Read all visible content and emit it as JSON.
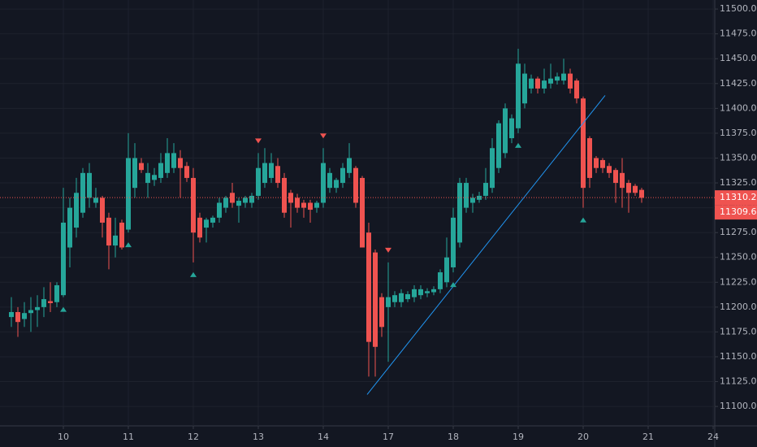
{
  "chart_data": {
    "type": "candlestick",
    "colors": {
      "up": "#26a69a",
      "down": "#ef5350",
      "trendline": "#2196f3"
    },
    "open": [
      11190,
      11195,
      11188,
      11194,
      11197,
      11200,
      11206,
      11205,
      11212,
      11260,
      11280,
      11295,
      11310,
      11305,
      11310,
      11290,
      11262,
      11285,
      11278,
      11320,
      11345,
      11325,
      11328,
      11330,
      11335,
      11340,
      11350,
      11342,
      11330,
      11290,
      11280,
      11285,
      11290,
      11300,
      11315,
      11302,
      11305,
      11305,
      11312,
      11325,
      11330,
      11342,
      11330,
      11315,
      11310,
      11305,
      11305,
      11300,
      11305,
      11320,
      11320,
      11325,
      11335,
      11340,
      11330,
      11275,
      11255,
      11210,
      11200,
      11205,
      11205,
      11208,
      11210,
      11212,
      11214,
      11215,
      11218,
      11225,
      11240,
      11265,
      11300,
      11305,
      11308,
      11312,
      11320,
      11340,
      11355,
      11370,
      11380,
      11405,
      11420,
      11430,
      11420,
      11425,
      11428,
      11428,
      11435,
      11428,
      11410,
      11370,
      11350,
      11348,
      11342,
      11338,
      11335,
      11325,
      11322,
      11318
    ],
    "high": [
      11210,
      11200,
      11205,
      11210,
      11212,
      11220,
      11225,
      11225,
      11320,
      11310,
      11330,
      11340,
      11345,
      11320,
      11312,
      11295,
      11290,
      11288,
      11375,
      11365,
      11350,
      11345,
      11340,
      11355,
      11370,
      11365,
      11358,
      11346,
      11340,
      11295,
      11290,
      11292,
      11310,
      11312,
      11325,
      11310,
      11312,
      11315,
      11355,
      11360,
      11355,
      11350,
      11335,
      11318,
      11314,
      11308,
      11308,
      11307,
      11360,
      11340,
      11330,
      11345,
      11365,
      11342,
      11332,
      11285,
      11258,
      11214,
      11245,
      11216,
      11218,
      11216,
      11222,
      11222,
      11219,
      11221,
      11238,
      11270,
      11300,
      11330,
      11330,
      11314,
      11316,
      11340,
      11370,
      11388,
      11405,
      11394,
      11460,
      11445,
      11434,
      11432,
      11440,
      11445,
      11436,
      11450,
      11440,
      11430,
      11412,
      11372,
      11352,
      11350,
      11345,
      11340,
      11350,
      11328,
      11324,
      11320
    ],
    "low": [
      11180,
      11170,
      11180,
      11175,
      11180,
      11190,
      11195,
      11200,
      11210,
      11240,
      11270,
      11290,
      11300,
      11300,
      11270,
      11238,
      11250,
      11258,
      11275,
      11310,
      11335,
      11310,
      11322,
      11325,
      11330,
      11335,
      11310,
      11326,
      11245,
      11265,
      11265,
      11280,
      11285,
      11295,
      11300,
      11285,
      11300,
      11300,
      11308,
      11320,
      11325,
      11320,
      11290,
      11280,
      11295,
      11290,
      11285,
      11295,
      11300,
      11315,
      11315,
      11320,
      11330,
      11300,
      11260,
      11130,
      11130,
      11170,
      11145,
      11200,
      11200,
      11205,
      11205,
      11208,
      11210,
      11212,
      11214,
      11220,
      11235,
      11260,
      11295,
      11295,
      11305,
      11308,
      11315,
      11335,
      11350,
      11365,
      11375,
      11400,
      11415,
      11415,
      11415,
      11420,
      11424,
      11424,
      11415,
      11405,
      11300,
      11320,
      11335,
      11335,
      11330,
      11305,
      11300,
      11295,
      11312,
      11305
    ],
    "close": [
      11195,
      11185,
      11194,
      11197,
      11200,
      11208,
      11204,
      11222,
      11285,
      11300,
      11315,
      11335,
      11335,
      11310,
      11285,
      11262,
      11272,
      11260,
      11350,
      11350,
      11338,
      11335,
      11333,
      11345,
      11355,
      11355,
      11340,
      11330,
      11275,
      11270,
      11288,
      11290,
      11305,
      11310,
      11305,
      11307,
      11310,
      11312,
      11340,
      11345,
      11345,
      11325,
      11295,
      11305,
      11300,
      11300,
      11298,
      11305,
      11345,
      11335,
      11328,
      11340,
      11350,
      11305,
      11260,
      11165,
      11160,
      11180,
      11210,
      11212,
      11214,
      11213,
      11218,
      11218,
      11216,
      11218,
      11235,
      11250,
      11290,
      11325,
      11325,
      11310,
      11312,
      11325,
      11360,
      11385,
      11400,
      11390,
      11445,
      11435,
      11430,
      11420,
      11428,
      11430,
      11432,
      11435,
      11420,
      11410,
      11320,
      11330,
      11340,
      11340,
      11335,
      11325,
      11320,
      11315,
      11315,
      11310
    ],
    "signals": [
      {
        "index": 8,
        "direction": "up"
      },
      {
        "index": 18,
        "direction": "up"
      },
      {
        "index": 28,
        "direction": "up"
      },
      {
        "index": 38,
        "direction": "down"
      },
      {
        "index": 48,
        "direction": "down"
      },
      {
        "index": 58,
        "direction": "down"
      },
      {
        "index": 68,
        "direction": "up"
      },
      {
        "index": 78,
        "direction": "up"
      },
      {
        "index": 88,
        "direction": "up"
      }
    ],
    "trendline": {
      "x": [
        54.75,
        91.375
      ],
      "y": [
        11112,
        11413
      ]
    },
    "price_labels": [
      {
        "value": 11310.2,
        "label": "11310.20"
      },
      {
        "value": 11309.65,
        "label": "11309.65"
      }
    ],
    "xlim": [
      -1.75,
      108.25
    ],
    "xticks": [
      {
        "value": 8,
        "label": "10"
      },
      {
        "value": 18,
        "label": "11"
      },
      {
        "value": 28,
        "label": "12"
      },
      {
        "value": 38,
        "label": "13"
      },
      {
        "value": 48,
        "label": "14"
      },
      {
        "value": 58,
        "label": "17"
      },
      {
        "value": 68,
        "label": "18"
      },
      {
        "value": 78,
        "label": "19"
      },
      {
        "value": 88,
        "label": "20"
      },
      {
        "value": 98,
        "label": "21"
      },
      {
        "value": 108,
        "label": "24"
      }
    ],
    "ylim": [
      11096,
      11505
    ],
    "yticks": [
      {
        "value": 11100,
        "label": "11100.00"
      },
      {
        "value": 11125,
        "label": "11125.00"
      },
      {
        "value": 11150,
        "label": "11150.00"
      },
      {
        "value": 11175,
        "label": "11175.00"
      },
      {
        "value": 11200,
        "label": "11200.00"
      },
      {
        "value": 11225,
        "label": "11225.00"
      },
      {
        "value": 11250,
        "label": "11250.00"
      },
      {
        "value": 11275,
        "label": "11275.00"
      },
      {
        "value": 11300,
        "label": "11300.00"
      },
      {
        "value": 11325,
        "label": "11325.00"
      },
      {
        "value": 11350,
        "label": "11350.00"
      },
      {
        "value": 11375,
        "label": "11375.00"
      },
      {
        "value": 11400,
        "label": "11400.00"
      },
      {
        "value": 11425,
        "label": "11425.00"
      },
      {
        "value": 11450,
        "label": "11450.00"
      },
      {
        "value": 11475,
        "label": "11475.00"
      },
      {
        "value": 11500,
        "label": "11500.00"
      }
    ],
    "grid": true
  }
}
